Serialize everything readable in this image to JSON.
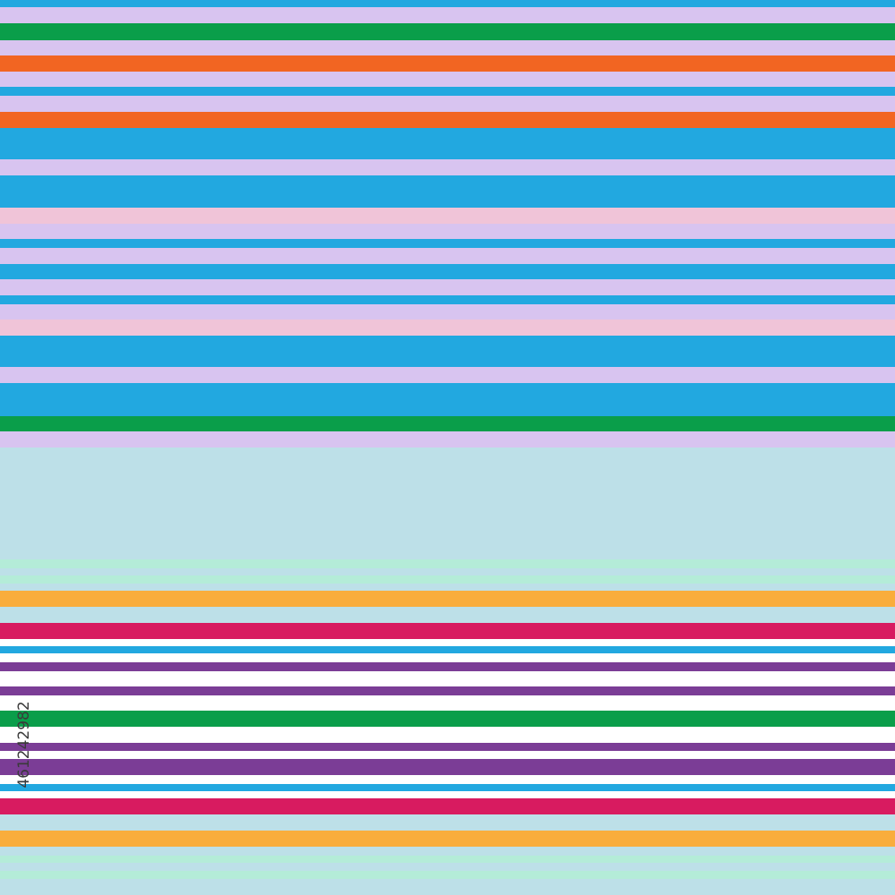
{
  "image_id": "461242982"
}
